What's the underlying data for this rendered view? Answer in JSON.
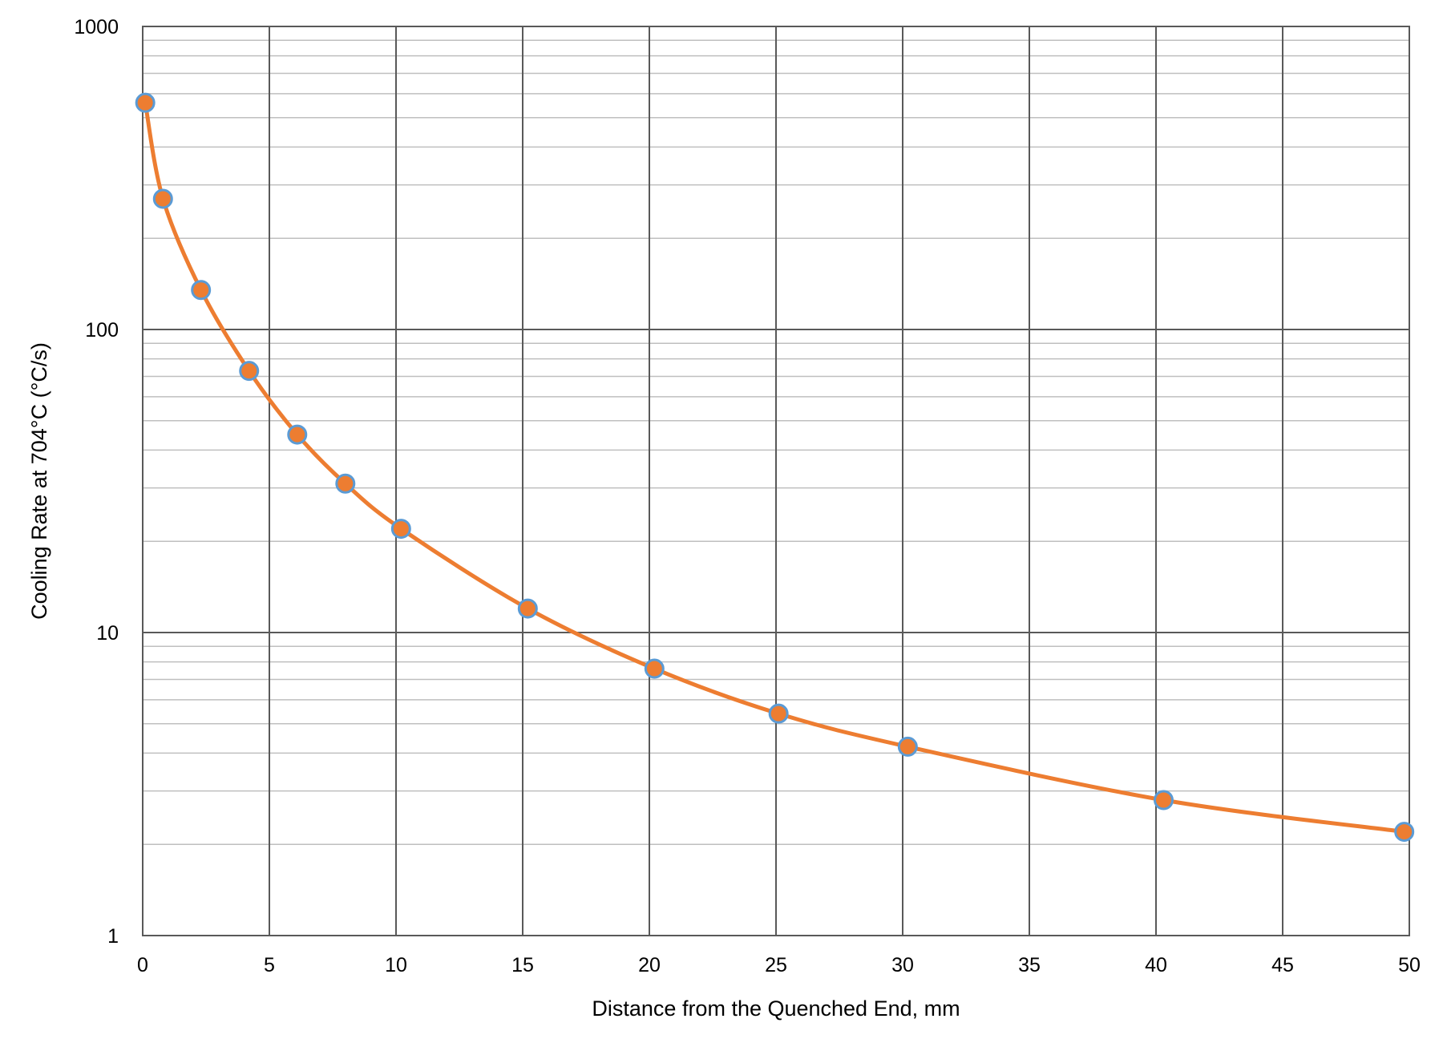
{
  "chart_data": {
    "type": "line",
    "xlabel": "Distance from the Quenched End, mm",
    "ylabel": "Cooling Rate at 704°C (°C/s)",
    "y_scale": "log",
    "xlim": [
      0,
      50
    ],
    "ylim": [
      1,
      1000
    ],
    "x_ticks": [
      "0",
      "5",
      "10",
      "15",
      "20",
      "25",
      "30",
      "35",
      "40",
      "45",
      "50"
    ],
    "y_ticks": [
      "1",
      "10",
      "100",
      "1000"
    ],
    "grid": true,
    "smooth_line": true,
    "series": [
      {
        "x": [
          0.1,
          0.8,
          2.3,
          4.2,
          6.1,
          8.0,
          10.2,
          15.2,
          20.2,
          25.1,
          30.2,
          40.3,
          49.8
        ],
        "y": [
          560,
          270,
          135,
          73,
          45,
          31,
          22,
          12,
          7.6,
          5.4,
          4.2,
          2.8,
          2.2
        ],
        "color": "#ED7D31",
        "marker_fill": "#ED7D31",
        "marker_edge": "#5B9BD5"
      }
    ]
  }
}
